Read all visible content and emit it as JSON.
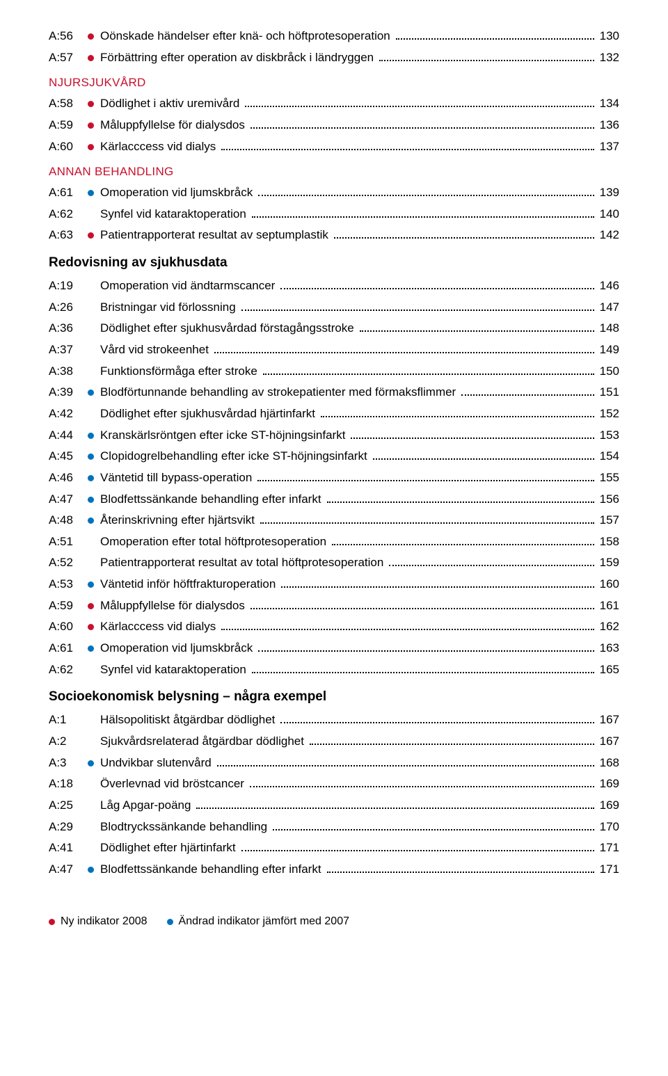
{
  "colors": {
    "red": "#c8102e",
    "blue": "#0072bc",
    "text": "#000000",
    "bg": "#ffffff"
  },
  "font": {
    "family": "Arial, Helvetica, sans-serif",
    "entry_size": 17,
    "heading_size": 19,
    "section_size": 17
  },
  "sections": [
    {
      "type": "entries",
      "entries": [
        {
          "code": "A:56",
          "marker": "red",
          "title": "Oönskade händelser efter knä- och höftprotesoperation",
          "page": "130"
        },
        {
          "code": "A:57",
          "marker": "red",
          "title": "Förbättring efter operation av diskbråck i ländryggen",
          "page": "132"
        }
      ]
    },
    {
      "type": "section",
      "label": "NJURSJUKVÅRD"
    },
    {
      "type": "entries",
      "entries": [
        {
          "code": "A:58",
          "marker": "red",
          "title": "Dödlighet i aktiv uremivård",
          "page": "134"
        },
        {
          "code": "A:59",
          "marker": "red",
          "title": "Måluppfyllelse för dialysdos",
          "page": "136"
        },
        {
          "code": "A:60",
          "marker": "red",
          "title": "Kärlacccess vid dialys",
          "page": "137"
        }
      ]
    },
    {
      "type": "section",
      "label": "ANNAN BEHANDLING"
    },
    {
      "type": "entries",
      "entries": [
        {
          "code": "A:61",
          "marker": "blue",
          "title": "Omoperation vid ljumskbråck",
          "page": "139"
        },
        {
          "code": "A:62",
          "marker": null,
          "title": "Synfel vid kataraktoperation",
          "page": "140"
        },
        {
          "code": "A:63",
          "marker": "red",
          "title": "Patientrapporterat resultat av septumplastik",
          "page": "142"
        }
      ]
    },
    {
      "type": "bold",
      "label": "Redovisning av sjukhusdata"
    },
    {
      "type": "entries",
      "entries": [
        {
          "code": "A:19",
          "marker": null,
          "title": "Omoperation vid ändtarmscancer",
          "page": "146"
        },
        {
          "code": "A:26",
          "marker": null,
          "title": "Bristningar vid förlossning",
          "page": "147"
        },
        {
          "code": "A:36",
          "marker": null,
          "title": "Dödlighet efter sjukhusvårdad förstagångsstroke",
          "page": "148"
        },
        {
          "code": "A:37",
          "marker": null,
          "title": "Vård vid strokeenhet",
          "page": "149"
        },
        {
          "code": "A:38",
          "marker": null,
          "title": "Funktionsförmåga efter stroke",
          "page": "150"
        },
        {
          "code": "A:39",
          "marker": "blue",
          "title": "Blodförtunnande behandling av strokepatienter med förmaksflimmer",
          "page": "151"
        },
        {
          "code": "A:42",
          "marker": null,
          "title": "Dödlighet efter sjukhusvårdad hjärtinfarkt",
          "page": "152"
        },
        {
          "code": "A:44",
          "marker": "blue",
          "title": "Kranskärlsröntgen efter icke ST-höjningsinfarkt",
          "page": "153"
        },
        {
          "code": "A:45",
          "marker": "blue",
          "title": "Clopidogrelbehandling efter icke ST-höjningsinfarkt",
          "page": "154"
        },
        {
          "code": "A:46",
          "marker": "blue",
          "title": "Väntetid till bypass-operation",
          "page": "155"
        },
        {
          "code": "A:47",
          "marker": "blue",
          "title": "Blodfettssänkande behandling efter infarkt",
          "page": "156"
        },
        {
          "code": "A:48",
          "marker": "blue",
          "title": "Återinskrivning efter hjärtsvikt",
          "page": "157"
        },
        {
          "code": "A:51",
          "marker": null,
          "title": "Omoperation efter total höftprotesoperation",
          "page": "158"
        },
        {
          "code": "A:52",
          "marker": null,
          "title": "Patientrapporterat resultat av total höftprotesoperation",
          "page": "159"
        },
        {
          "code": "A:53",
          "marker": "blue",
          "title": "Väntetid inför höftfrakturoperation",
          "page": "160"
        },
        {
          "code": "A:59",
          "marker": "red",
          "title": "Måluppfyllelse för dialysdos",
          "page": "161"
        },
        {
          "code": "A:60",
          "marker": "red",
          "title": "Kärlacccess vid dialys",
          "page": "162"
        },
        {
          "code": "A:61",
          "marker": "blue",
          "title": "Omoperation vid ljumskbråck",
          "page": "163"
        },
        {
          "code": "A:62",
          "marker": null,
          "title": "Synfel vid kataraktoperation",
          "page": "165"
        }
      ]
    },
    {
      "type": "bold",
      "label": "Socioekonomisk belysning – några exempel"
    },
    {
      "type": "entries",
      "entries": [
        {
          "code": "A:1",
          "marker": null,
          "title": "Hälsopolitiskt åtgärdbar dödlighet",
          "page": "167"
        },
        {
          "code": "A:2",
          "marker": null,
          "title": "Sjukvårdsrelaterad åtgärdbar dödlighet",
          "page": "167"
        },
        {
          "code": "A:3",
          "marker": "blue",
          "title": "Undvikbar slutenvård",
          "page": "168"
        },
        {
          "code": "A:18",
          "marker": null,
          "title": "Överlevnad vid bröstcancer",
          "page": "169"
        },
        {
          "code": "A:25",
          "marker": null,
          "title": "Låg Apgar-poäng",
          "page": "169"
        },
        {
          "code": "A:29",
          "marker": null,
          "title": "Blodtryckssänkande behandling",
          "page": "170"
        },
        {
          "code": "A:41",
          "marker": null,
          "title": "Dödlighet efter hjärtinfarkt",
          "page": "171"
        },
        {
          "code": "A:47",
          "marker": "blue",
          "title": "Blodfettssänkande behandling efter infarkt",
          "page": "171"
        }
      ]
    }
  ],
  "legend": [
    {
      "marker": "red",
      "label": "Ny indikator 2008"
    },
    {
      "marker": "blue",
      "label": "Ändrad indikator jämfört med 2007"
    }
  ]
}
